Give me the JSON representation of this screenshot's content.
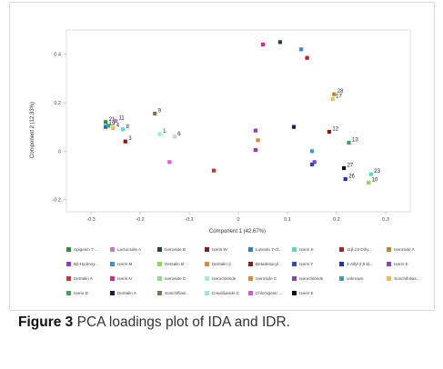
{
  "caption": {
    "label": "Figure 3",
    "text": "PCA loadings plot of IDA and IDR."
  },
  "chart_data": {
    "type": "scatter",
    "xlabel": "Component 1 (42.67%)",
    "ylabel": "Component 2 (12.33%)",
    "xlim": [
      -0.35,
      0.35
    ],
    "ylim": [
      -0.25,
      0.5
    ],
    "xticks": [
      "-0.3",
      "-0.2",
      "-0.1",
      "0",
      "0.1",
      "0.2",
      "0.3"
    ],
    "xtick_values": [
      -0.3,
      -0.2,
      -0.1,
      0,
      0.1,
      0.2,
      0.3
    ],
    "yticks": [
      "-0.2",
      "0",
      "0.2",
      "0.4"
    ],
    "ytick_values": [
      -0.2,
      0,
      0.2,
      0.4
    ],
    "grid": false,
    "legend_placement": "bottom",
    "points": [
      {
        "x": -0.27,
        "y": 0.12,
        "label": "21",
        "color": "#2f8f3a"
      },
      {
        "x": -0.25,
        "y": 0.125,
        "label": "11",
        "color": "#d070d0"
      },
      {
        "x": -0.27,
        "y": 0.1,
        "label": "19",
        "color": "#2060c0"
      },
      {
        "x": -0.265,
        "y": 0.105,
        "label": "",
        "color": "#33aa66"
      },
      {
        "x": -0.255,
        "y": 0.095,
        "label": "4",
        "color": "#e6c04a"
      },
      {
        "x": -0.235,
        "y": 0.09,
        "label": "8",
        "color": "#55dddd"
      },
      {
        "x": -0.23,
        "y": 0.04,
        "label": "3",
        "color": "#8b1a1a"
      },
      {
        "x": -0.17,
        "y": 0.155,
        "label": "9",
        "color": "#8b6f47"
      },
      {
        "x": -0.16,
        "y": 0.07,
        "label": "1",
        "color": "#88eeee"
      },
      {
        "x": -0.14,
        "y": -0.045,
        "label": "",
        "color": "#dd55dd"
      },
      {
        "x": -0.13,
        "y": 0.06,
        "label": "6",
        "color": "#d0d0d0"
      },
      {
        "x": -0.05,
        "y": -0.08,
        "label": "",
        "color": "#cc3333"
      },
      {
        "x": 0.05,
        "y": 0.44,
        "label": "",
        "color": "#dd2299"
      },
      {
        "x": 0.085,
        "y": 0.45,
        "label": "",
        "color": "#1a4d2e"
      },
      {
        "x": 0.128,
        "y": 0.42,
        "label": "",
        "color": "#4488cc"
      },
      {
        "x": 0.14,
        "y": 0.385,
        "label": "",
        "color": "#aa2222"
      },
      {
        "x": 0.035,
        "y": 0.085,
        "label": "",
        "color": "#8844aa"
      },
      {
        "x": 0.04,
        "y": 0.045,
        "label": "",
        "color": "#dd8833"
      },
      {
        "x": 0.035,
        "y": 0.005,
        "label": "",
        "color": "#9933cc"
      },
      {
        "x": 0.113,
        "y": 0.1,
        "label": "",
        "color": "#1a1a55"
      },
      {
        "x": 0.15,
        "y": 0.0,
        "label": "",
        "color": "#4499bb"
      },
      {
        "x": 0.155,
        "y": -0.045,
        "label": "",
        "color": "#8844bb"
      },
      {
        "x": 0.15,
        "y": -0.055,
        "label": "",
        "color": "#3344cc"
      },
      {
        "x": 0.195,
        "y": 0.235,
        "label": "28",
        "color": "#bb8822"
      },
      {
        "x": 0.192,
        "y": 0.215,
        "label": "17",
        "color": "#f0c040"
      },
      {
        "x": 0.185,
        "y": 0.08,
        "label": "12",
        "color": "#8b1a1a"
      },
      {
        "x": 0.225,
        "y": 0.035,
        "label": "13",
        "color": "#33aa55"
      },
      {
        "x": 0.215,
        "y": -0.07,
        "label": "27",
        "color": "#111111"
      },
      {
        "x": 0.218,
        "y": -0.115,
        "label": "26",
        "color": "#2233aa"
      },
      {
        "x": 0.27,
        "y": -0.095,
        "label": "23",
        "color": "#55ddbb"
      },
      {
        "x": 0.265,
        "y": -0.13,
        "label": "10",
        "color": "#88dd55"
      }
    ],
    "legend": [
      {
        "label": "Apigenin 7-...",
        "color": "#2f8f3a"
      },
      {
        "label": "Lactucside A",
        "color": "#d070d0"
      },
      {
        "label": "Ixeroside B",
        "color": "#1a4d2e"
      },
      {
        "label": "Ixerin W",
        "color": "#8b1a1a"
      },
      {
        "label": "Luteolin 7-O...",
        "color": "#2288bb"
      },
      {
        "label": "Ixerin S",
        "color": "#55ddaa"
      },
      {
        "label": "11β,13-Dihy...",
        "color": "#aa2222"
      },
      {
        "label": "Ixeroside A",
        "color": "#bb8822"
      },
      {
        "label": "8β-Hydroxy...",
        "color": "#9933cc"
      },
      {
        "label": "Ixerin M",
        "color": "#3399cc"
      },
      {
        "label": "Dentalin B",
        "color": "#88dd55"
      },
      {
        "label": "Dentalin C",
        "color": "#dd8833"
      },
      {
        "label": "Betadesacyl...",
        "color": "#8b1a1a"
      },
      {
        "label": "Ixerin Y",
        "color": "#3344cc"
      },
      {
        "label": "4-Allyl-2,6-di...",
        "color": "#2233aa"
      },
      {
        "label": "Ixerin E",
        "color": "#8844bb"
      },
      {
        "label": "Dentalin A",
        "color": "#cc3333"
      },
      {
        "label": "Ixerin N",
        "color": "#dd2299"
      },
      {
        "label": "Ixeroside C",
        "color": "#88dd88"
      },
      {
        "label": "Ixerochloride",
        "color": "#99eeee"
      },
      {
        "label": "Ixeroside C",
        "color": "#dd8833"
      },
      {
        "label": "Ixerochloride",
        "color": "#8844aa"
      },
      {
        "label": "unknown",
        "color": "#4499bb"
      },
      {
        "label": "Sonchifolias...",
        "color": "#f0c040"
      },
      {
        "label": "Ixerin D",
        "color": "#33aa55"
      },
      {
        "label": "Dentalin A",
        "color": "#1a1a55"
      },
      {
        "label": "Sonchifliasi...",
        "color": "#8b6f47"
      },
      {
        "label": "Crepidiaside C",
        "color": "#88eeee"
      },
      {
        "label": "Chlorogenic ...",
        "color": "#dd55dd"
      },
      {
        "label": "Ixerin E",
        "color": "#111111"
      }
    ]
  }
}
